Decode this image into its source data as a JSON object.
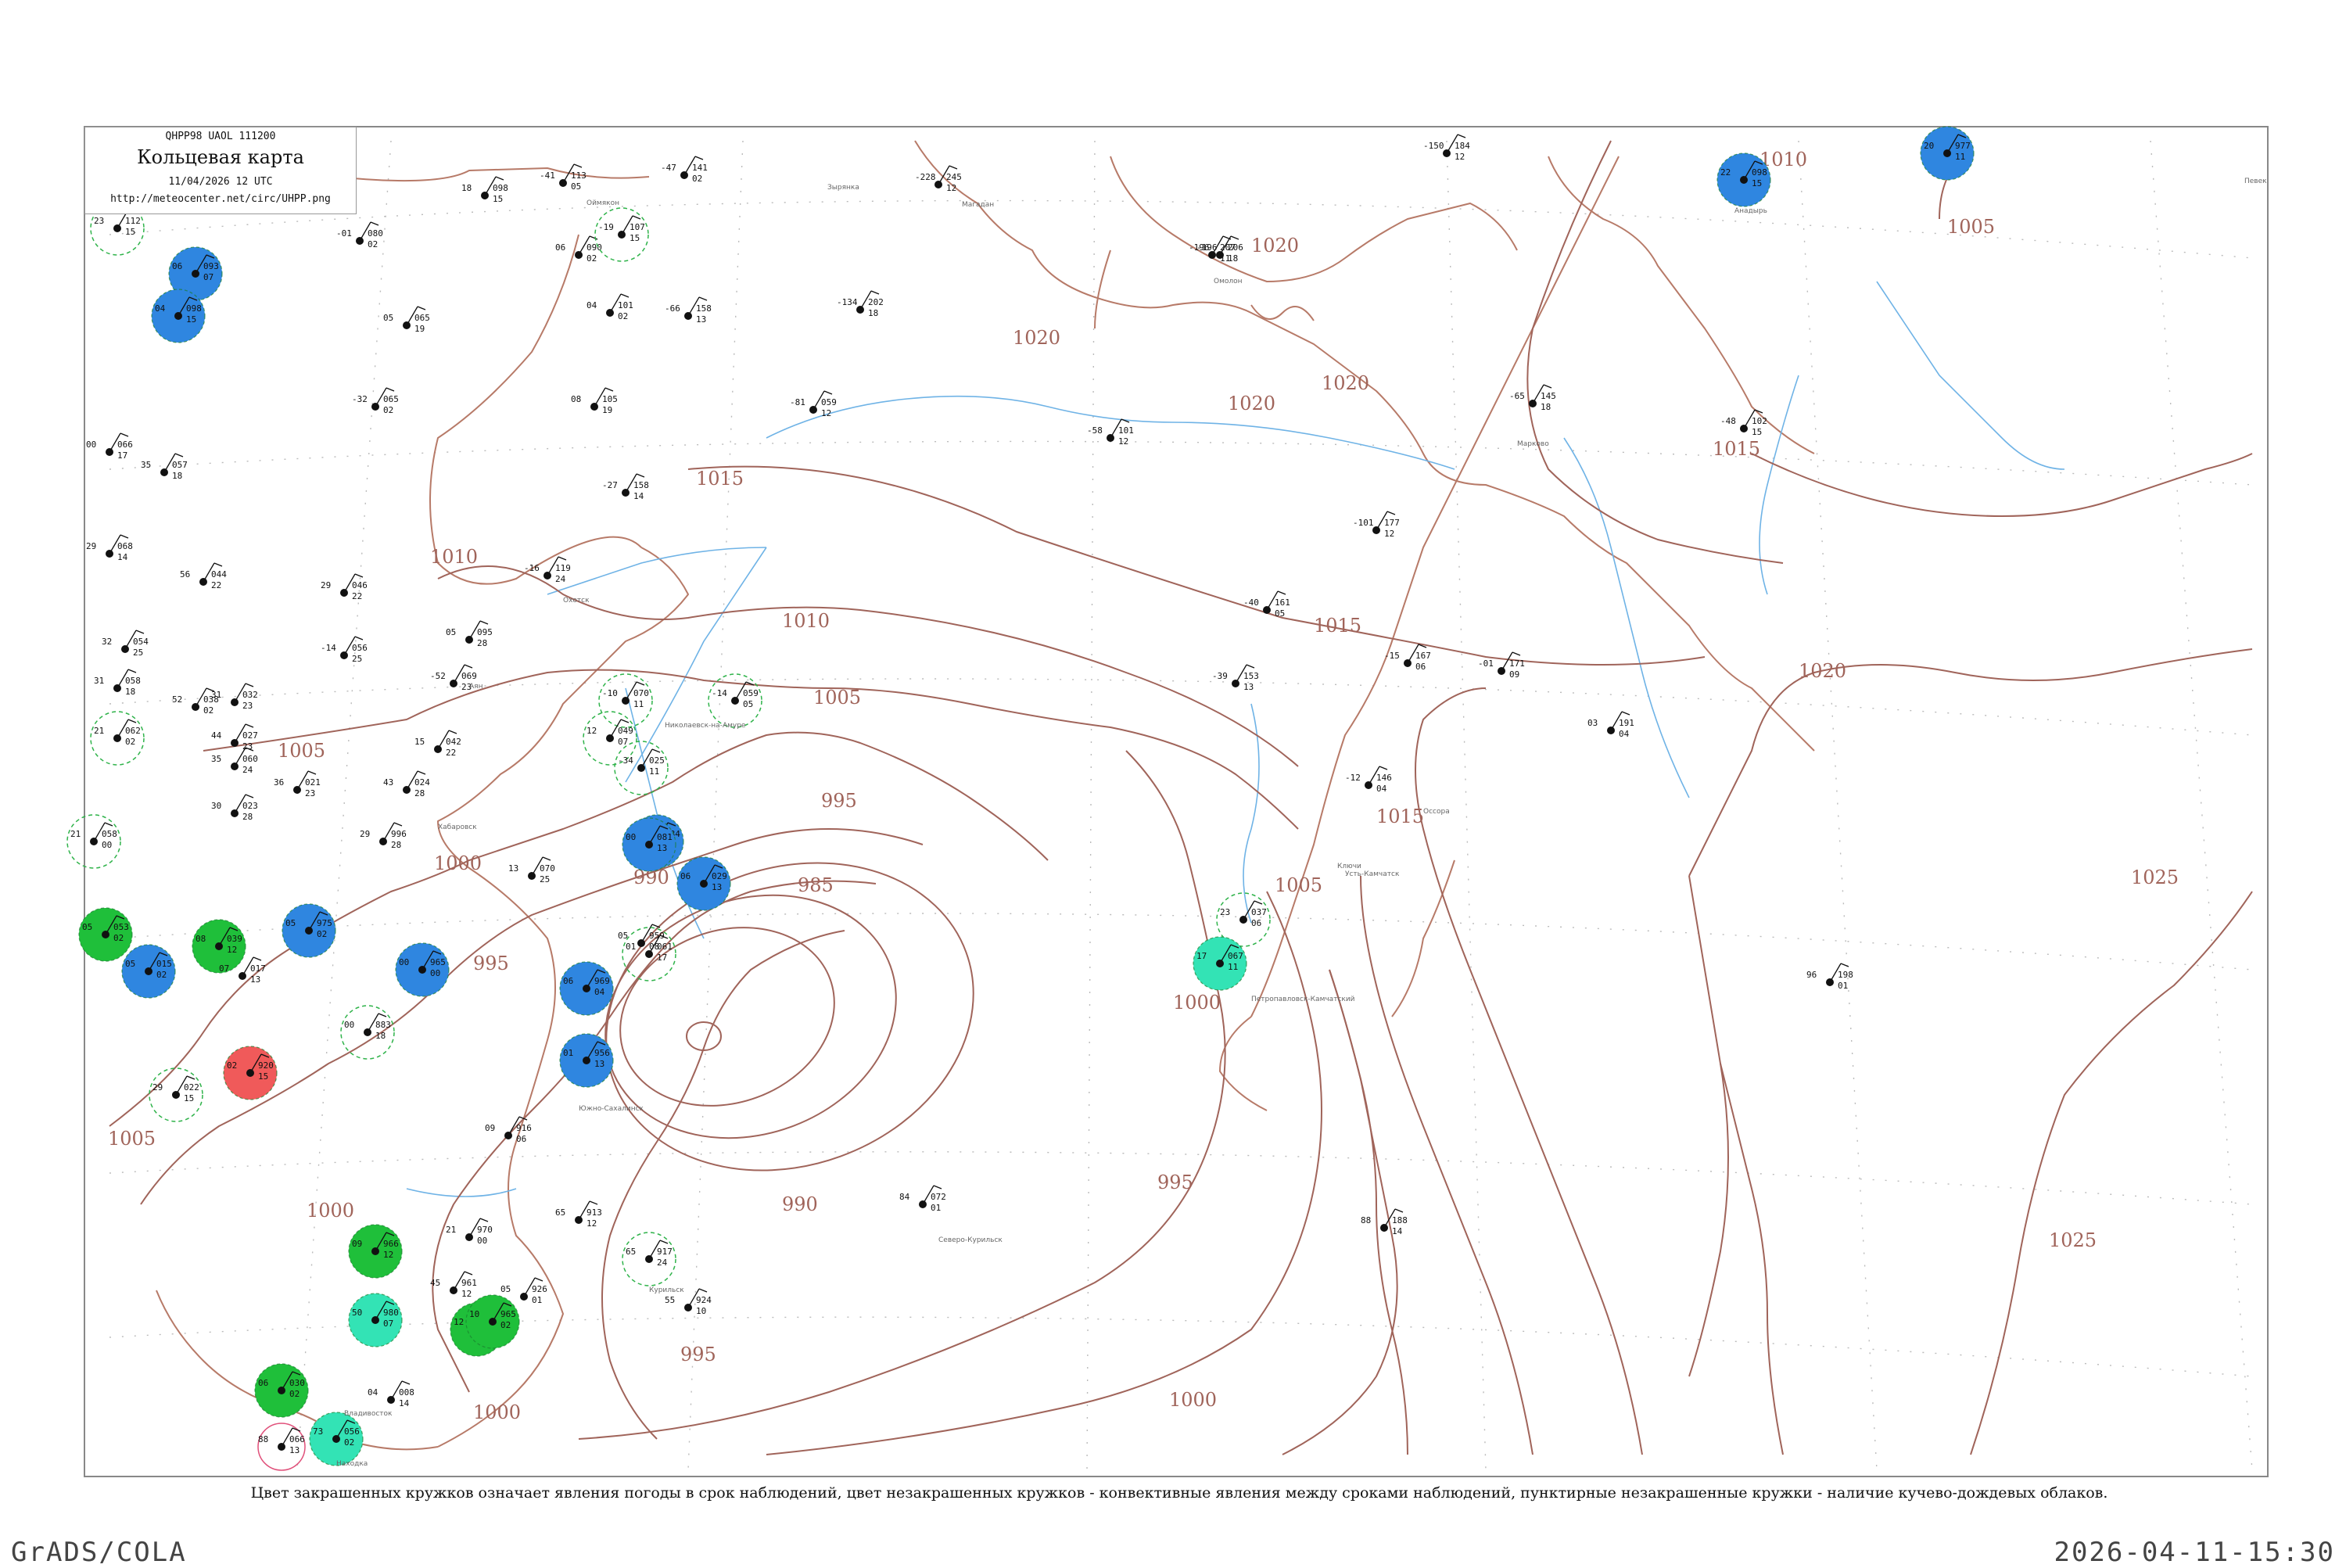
{
  "header": {
    "code": "QHPP98  UAOL  111200",
    "title": "Кольцевая карта",
    "date": "11/04/2026 12 UTC",
    "url": "http://meteocenter.net/circ/UHPP.png"
  },
  "footnote": "Цвет закрашенных кружков означает явления погоды в срок наблюдений, цвет незакрашенных кружков - конвективные явления между сроками наблюдений, пунктирные незакрашенные кружки - наличие кучево-дождевых облаков.",
  "credit": "GrADS/COLA",
  "timestamp": "2026-04-11-15:30",
  "colors": {
    "isobar": "#a0645a",
    "coast": "#b77a68",
    "river": "#6fb3e6",
    "rain": "#2f86e0",
    "snow": "#1fbf3a",
    "mixed": "#33e3b5",
    "storm": "#f05a5a",
    "cb_ring": "#2fb34a"
  },
  "isobar_labels": [
    {
      "text": "1020"
    },
    {
      "text": "1020"
    },
    {
      "text": "1020"
    },
    {
      "text": "1020"
    },
    {
      "text": "1015"
    },
    {
      "text": "1015"
    },
    {
      "text": "1015"
    },
    {
      "text": "1015"
    },
    {
      "text": "1010"
    },
    {
      "text": "1010"
    },
    {
      "text": "1010"
    },
    {
      "text": "1005"
    },
    {
      "text": "1005"
    },
    {
      "text": "1005"
    },
    {
      "text": "1005"
    },
    {
      "text": "1005"
    },
    {
      "text": "1000"
    },
    {
      "text": "1000"
    },
    {
      "text": "1000"
    },
    {
      "text": "1000"
    },
    {
      "text": "1000"
    },
    {
      "text": "995"
    },
    {
      "text": "995"
    },
    {
      "text": "995"
    },
    {
      "text": "995"
    },
    {
      "text": "990"
    },
    {
      "text": "990"
    },
    {
      "text": "985"
    },
    {
      "text": "1020"
    },
    {
      "text": "1025"
    },
    {
      "text": "1025"
    }
  ],
  "stations": [
    {
      "p": "112",
      "t": "23",
      "n": "15",
      "kind": "cb"
    },
    {
      "p": "093",
      "t": "06",
      "n": "07",
      "kind": "rain"
    },
    {
      "p": "098",
      "t": "04",
      "n": "15",
      "kind": "rain"
    },
    {
      "p": "113",
      "t": "-41",
      "n": "05",
      "kind": "none"
    },
    {
      "p": "098",
      "t": "18",
      "n": "15",
      "kind": "none"
    },
    {
      "p": "141",
      "t": "-47",
      "n": "02",
      "kind": "none"
    },
    {
      "p": "245",
      "t": "-228",
      "n": "12",
      "kind": "none"
    },
    {
      "p": "207",
      "t": "-196",
      "n": "11",
      "kind": "none"
    },
    {
      "p": "184",
      "t": "-150",
      "n": "12",
      "kind": "none"
    },
    {
      "p": "098",
      "t": "22",
      "n": "15",
      "kind": "rain"
    },
    {
      "p": "977",
      "t": "20",
      "n": "11",
      "kind": "rain"
    },
    {
      "p": "080",
      "t": "-01",
      "n": "02",
      "kind": "none"
    },
    {
      "p": "090",
      "t": "06",
      "n": "02",
      "kind": "none"
    },
    {
      "p": "107",
      "t": "-19",
      "n": "15",
      "kind": "cb"
    },
    {
      "p": "065",
      "t": "05",
      "n": "19",
      "kind": "none"
    },
    {
      "p": "101",
      "t": "04",
      "n": "02",
      "kind": "none"
    },
    {
      "p": "158",
      "t": "-66",
      "n": "13",
      "kind": "none"
    },
    {
      "p": "202",
      "t": "-134",
      "n": "18",
      "kind": "none"
    },
    {
      "p": "206",
      "t": "-196",
      "n": "18",
      "kind": "none"
    },
    {
      "p": "065",
      "t": "-32",
      "n": "02",
      "kind": "none"
    },
    {
      "p": "105",
      "t": "08",
      "n": "19",
      "kind": "none"
    },
    {
      "p": "059",
      "t": "-81",
      "n": "12",
      "kind": "none"
    },
    {
      "p": "101",
      "t": "-58",
      "n": "12",
      "kind": "none"
    },
    {
      "p": "145",
      "t": "-65",
      "n": "18",
      "kind": "none"
    },
    {
      "p": "102",
      "t": "-48",
      "n": "15",
      "kind": "none"
    },
    {
      "p": "066",
      "t": "00",
      "n": "17",
      "kind": "none"
    },
    {
      "p": "057",
      "t": "35",
      "n": "18",
      "kind": "none"
    },
    {
      "p": "158",
      "t": "-27",
      "n": "14",
      "kind": "none"
    },
    {
      "p": "177",
      "t": "-101",
      "n": "12",
      "kind": "none"
    },
    {
      "p": "068",
      "t": "29",
      "n": "14",
      "kind": "none"
    },
    {
      "p": "044",
      "t": "56",
      "n": "22",
      "kind": "none"
    },
    {
      "p": "046",
      "t": "29",
      "n": "22",
      "kind": "none"
    },
    {
      "p": "119",
      "t": "-16",
      "n": "24",
      "kind": "none"
    },
    {
      "p": "095",
      "t": "05",
      "n": "28",
      "kind": "none"
    },
    {
      "p": "161",
      "t": "-40",
      "n": "05",
      "kind": "none"
    },
    {
      "p": "054",
      "t": "32",
      "n": "25",
      "kind": "none"
    },
    {
      "p": "056",
      "t": "-14",
      "n": "25",
      "kind": "none"
    },
    {
      "p": "167",
      "t": "-15",
      "n": "06",
      "kind": "none"
    },
    {
      "p": "171",
      "t": "-01",
      "n": "09",
      "kind": "none"
    },
    {
      "p": "058",
      "t": "31",
      "n": "18",
      "kind": "none"
    },
    {
      "p": "032",
      "t": "31",
      "n": "23",
      "kind": "none"
    },
    {
      "p": "038",
      "t": "52",
      "n": "02",
      "kind": "none"
    },
    {
      "p": "069",
      "t": "-52",
      "n": "23",
      "kind": "none"
    },
    {
      "p": "070",
      "t": "-10",
      "n": "11",
      "kind": "cb"
    },
    {
      "p": "059",
      "t": "-14",
      "n": "05",
      "kind": "cb"
    },
    {
      "p": "153",
      "t": "-39",
      "n": "13",
      "kind": "none"
    },
    {
      "p": "191",
      "t": "03",
      "n": "04",
      "kind": "none"
    },
    {
      "p": "062",
      "t": "21",
      "n": "02",
      "kind": "cb"
    },
    {
      "p": "027",
      "t": "44",
      "n": "23",
      "kind": "none"
    },
    {
      "p": "060",
      "t": "35",
      "n": "24",
      "kind": "none"
    },
    {
      "p": "042",
      "t": "15",
      "n": "22",
      "kind": "none"
    },
    {
      "p": "049",
      "t": "12",
      "n": "07",
      "kind": "cb"
    },
    {
      "p": "025",
      "t": "-34",
      "n": "11",
      "kind": "cb"
    },
    {
      "p": "021",
      "t": "36",
      "n": "23",
      "kind": "none"
    },
    {
      "p": "024",
      "t": "43",
      "n": "28",
      "kind": "none"
    },
    {
      "p": "146",
      "t": "-12",
      "n": "04",
      "kind": "none"
    },
    {
      "p": "058",
      "t": "21",
      "n": "00",
      "kind": "cb"
    },
    {
      "p": "023",
      "t": "30",
      "n": "28",
      "kind": "none"
    },
    {
      "p": "996",
      "t": "29",
      "n": "28",
      "kind": "none"
    },
    {
      "p": "070",
      "t": "13",
      "n": "25",
      "kind": "none"
    },
    {
      "p": "084",
      "t": "08",
      "n": "14",
      "kind": "rain"
    },
    {
      "p": "037",
      "t": "23",
      "n": "06",
      "kind": "cb"
    },
    {
      "p": "081",
      "t": "00",
      "n": "13",
      "kind": "rain"
    },
    {
      "p": "067",
      "t": "17",
      "n": "11",
      "kind": "mixed"
    },
    {
      "p": "029",
      "t": "06",
      "n": "13",
      "kind": "rain"
    },
    {
      "p": "198",
      "t": "96",
      "n": "01",
      "kind": "none"
    },
    {
      "p": "053",
      "t": "05",
      "n": "02",
      "kind": "snow"
    },
    {
      "p": "039",
      "t": "08",
      "n": "12",
      "kind": "snow"
    },
    {
      "p": "017",
      "t": "07",
      "n": "13",
      "kind": "none"
    },
    {
      "p": "015",
      "t": "05",
      "n": "02",
      "kind": "rain"
    },
    {
      "p": "975",
      "t": "05",
      "n": "02",
      "kind": "rain"
    },
    {
      "p": "883",
      "t": "00",
      "n": "18",
      "kind": "cb"
    },
    {
      "p": "959",
      "t": "05",
      "n": "08",
      "kind": "none"
    },
    {
      "p": "965",
      "t": "00",
      "n": "00",
      "kind": "rain"
    },
    {
      "p": "956",
      "t": "01",
      "n": "13",
      "kind": "rain"
    },
    {
      "p": "969",
      "t": "06",
      "n": "04",
      "kind": "rain"
    },
    {
      "p": "920",
      "t": "02",
      "n": "15",
      "kind": "storm"
    },
    {
      "p": "916",
      "t": "09",
      "n": "06",
      "kind": "none"
    },
    {
      "p": "913",
      "t": "65",
      "n": "12",
      "kind": "none"
    },
    {
      "p": "917",
      "t": "65",
      "n": "24",
      "kind": "cb"
    },
    {
      "p": "924",
      "t": "55",
      "n": "10",
      "kind": "none"
    },
    {
      "p": "926",
      "t": "05",
      "n": "01",
      "kind": "none"
    },
    {
      "p": "970",
      "t": "21",
      "n": "00",
      "kind": "none"
    },
    {
      "p": "961",
      "t": "45",
      "n": "12",
      "kind": "none"
    },
    {
      "p": "959",
      "t": "12",
      "n": "11",
      "kind": "snow"
    },
    {
      "p": "966",
      "t": "09",
      "n": "12",
      "kind": "snow"
    },
    {
      "p": "965",
      "t": "10",
      "n": "02",
      "kind": "snow"
    },
    {
      "p": "980",
      "t": "50",
      "n": "07",
      "kind": "mixed"
    },
    {
      "p": "030",
      "t": "06",
      "n": "02",
      "kind": "snow"
    },
    {
      "p": "066",
      "t": "88",
      "n": "13",
      "kind": "storm_ring"
    },
    {
      "p": "056",
      "t": "73",
      "n": "02",
      "kind": "mixed"
    },
    {
      "p": "008",
      "t": "04",
      "n": "14",
      "kind": "none"
    },
    {
      "p": "188",
      "t": "88",
      "n": "14",
      "kind": "none"
    },
    {
      "p": "072",
      "t": "84",
      "n": "01",
      "kind": "none"
    },
    {
      "p": "061",
      "t": "01",
      "n": "17",
      "kind": "cb"
    },
    {
      "p": "022",
      "t": "29",
      "n": "15",
      "kind": "cb"
    }
  ],
  "station_names": [
    "Певек",
    "Анадырь",
    "Марково",
    "Омолон",
    "Зырянка",
    "Оймякон",
    "Магадан",
    "Охотск",
    "Аян",
    "Николаевск-на-Амуре",
    "Хабаровск",
    "Южно-Сахалинск",
    "Петропавловск-Камчатский",
    "Ключи",
    "Усть-Камчатск",
    "Оссора",
    "Северо-Курильск",
    "Курильск",
    "Владивосток",
    "Находка"
  ]
}
